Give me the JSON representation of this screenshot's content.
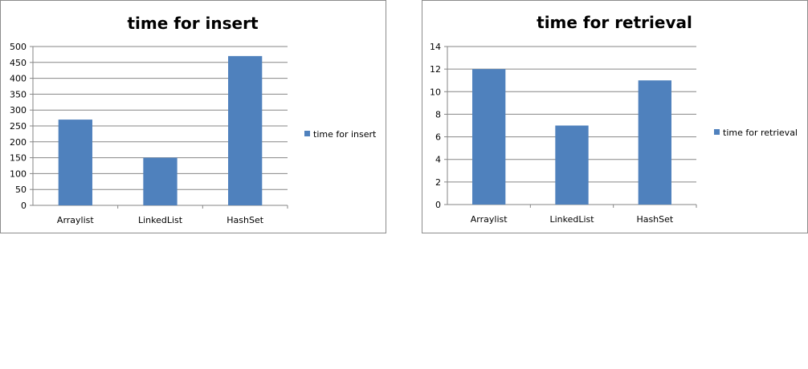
{
  "chart_data": [
    {
      "type": "bar",
      "title": "time for insert",
      "categories": [
        "Arraylist",
        "LinkedList",
        "HashSet"
      ],
      "series": [
        {
          "name": "time for insert",
          "values": [
            270,
            150,
            470
          ]
        }
      ],
      "ylim": [
        0,
        500
      ],
      "yticks": [
        0,
        50,
        100,
        150,
        200,
        250,
        300,
        350,
        400,
        450,
        500
      ],
      "grid": true,
      "legend": "right",
      "bar_color": "#4F81BD"
    },
    {
      "type": "bar",
      "title": "time for retrieval",
      "categories": [
        "Arraylist",
        "LinkedList",
        "HashSet"
      ],
      "series": [
        {
          "name": "time for retrieval",
          "values": [
            12,
            7,
            11
          ]
        }
      ],
      "ylim": [
        0,
        14
      ],
      "yticks": [
        0,
        2,
        4,
        6,
        8,
        10,
        12,
        14
      ],
      "grid": true,
      "legend": "right",
      "bar_color": "#4F81BD"
    }
  ]
}
